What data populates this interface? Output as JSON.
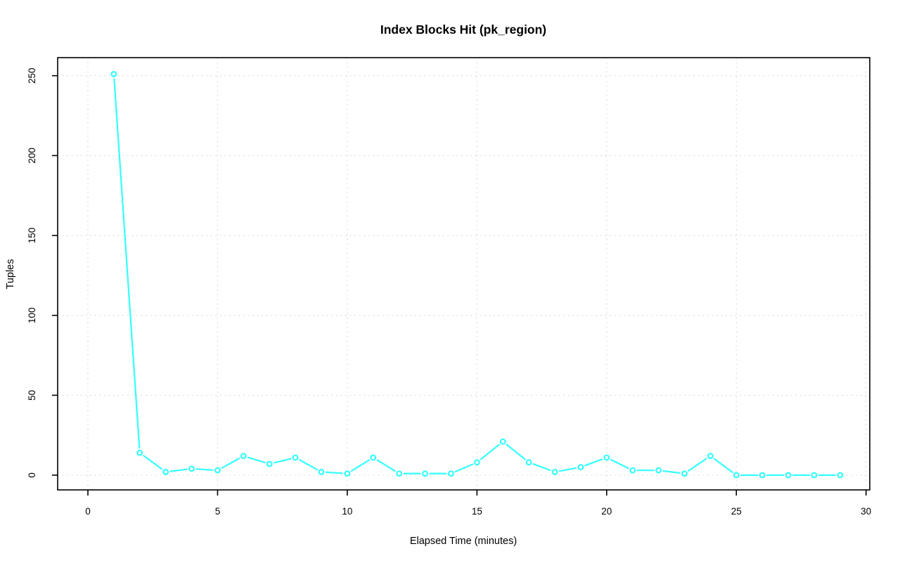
{
  "page": {
    "background": "#ffffff"
  },
  "chart_data": {
    "type": "line",
    "title": "Index Blocks Hit (pk_region)",
    "xlabel": "Elapsed Time (minutes)",
    "ylabel": "Tuples",
    "x": [
      1,
      2,
      3,
      4,
      5,
      6,
      7,
      8,
      9,
      10,
      11,
      12,
      13,
      14,
      15,
      16,
      17,
      18,
      19,
      20,
      21,
      22,
      23,
      24,
      25,
      26,
      27,
      28,
      29
    ],
    "series": [
      {
        "name": "Index Blocks Hit (pk_region)",
        "color": "#00FFFF",
        "marker": "open-circle",
        "values": [
          251,
          14,
          2,
          4,
          3,
          12,
          7,
          11,
          2,
          1,
          11,
          1,
          1,
          1,
          8,
          21,
          8,
          2,
          5,
          11,
          3,
          3,
          1,
          12,
          0,
          0,
          0,
          0,
          0
        ]
      }
    ],
    "xticks": [
      0,
      5,
      10,
      15,
      20,
      25,
      30
    ],
    "yticks": [
      0,
      50,
      100,
      150,
      200,
      250
    ],
    "xlim": [
      0,
      30
    ],
    "ylim": [
      0,
      250
    ],
    "grid": "dotted",
    "grid_color": "#D2D2D2",
    "axis_color": "#000000",
    "legend": null
  }
}
